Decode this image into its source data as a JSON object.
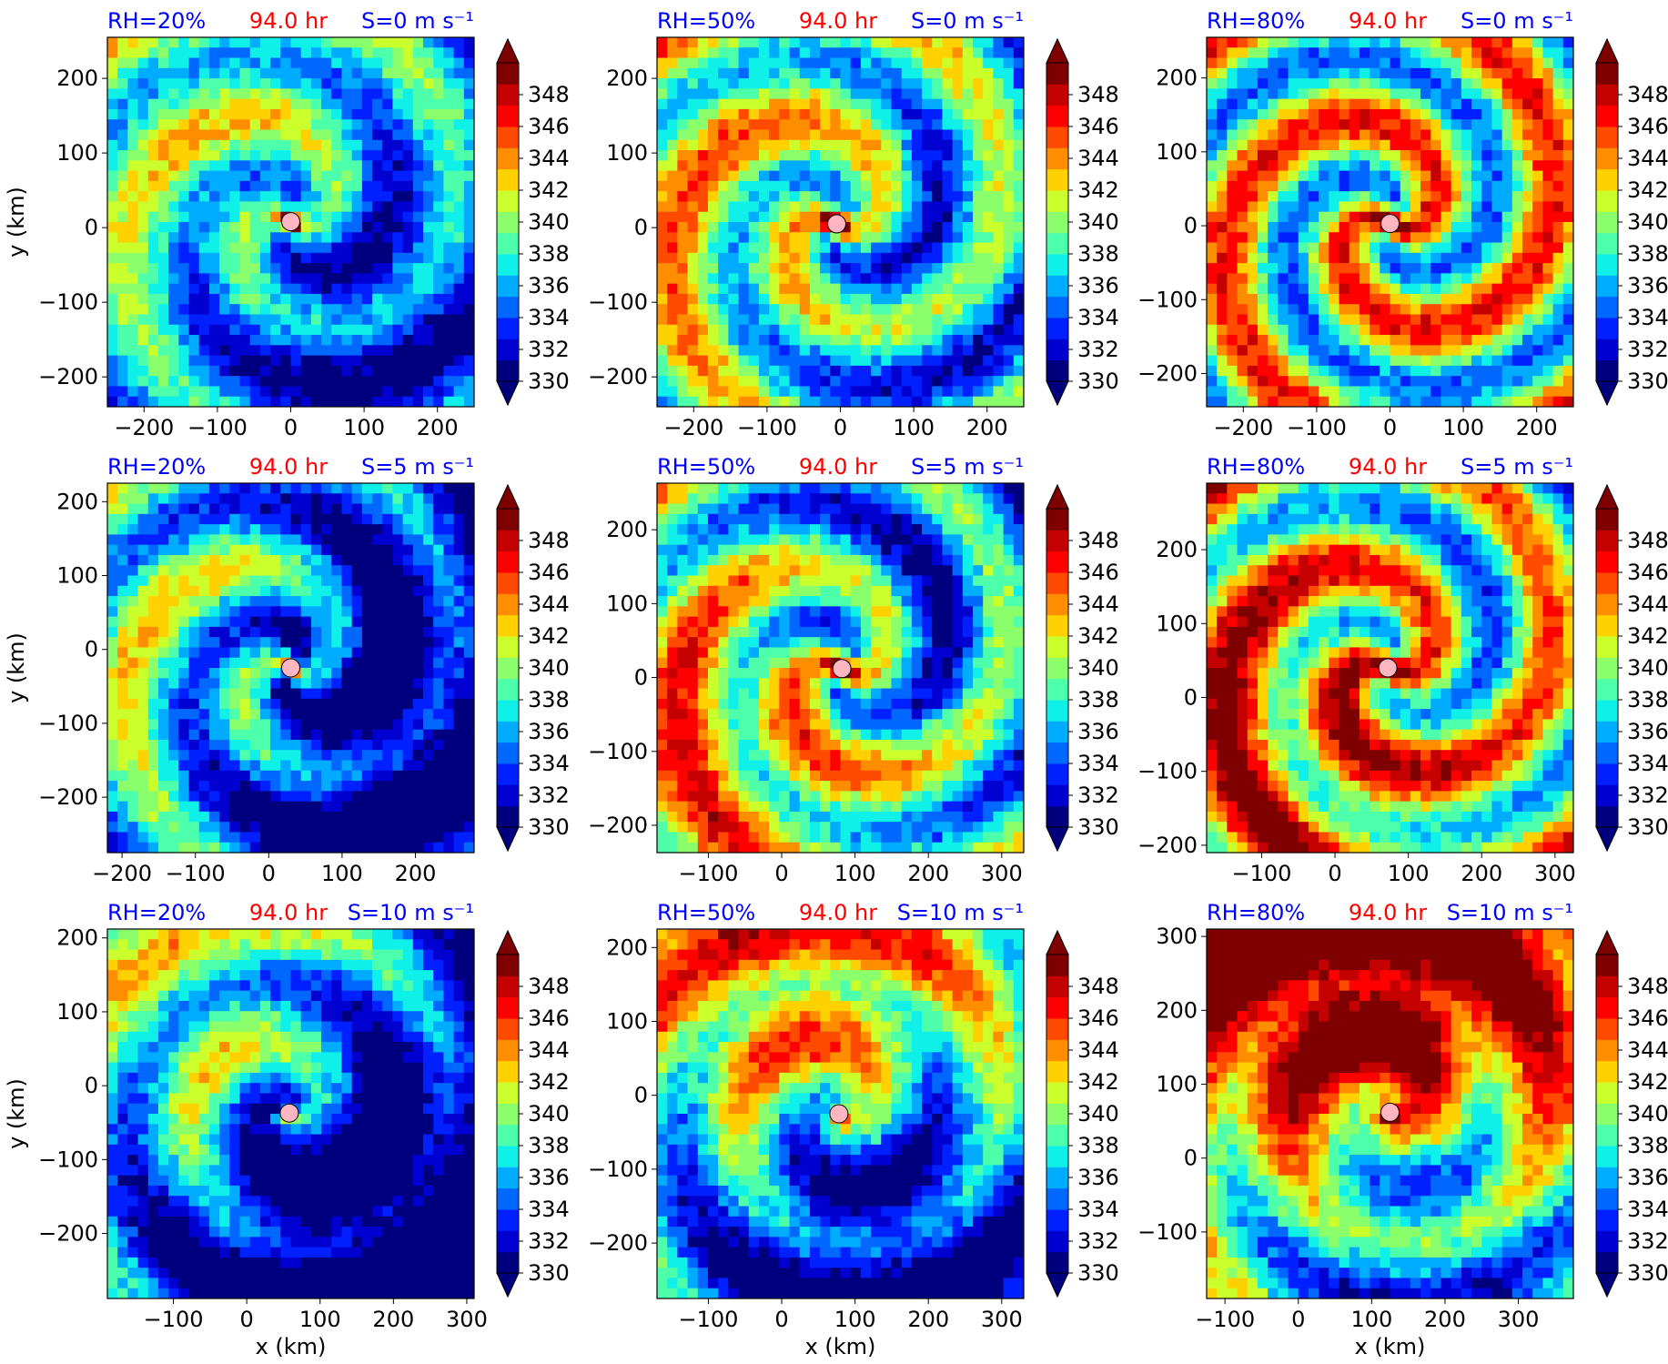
{
  "colors": {
    "label_blue": "#0000ff",
    "label_red": "#ff0000",
    "center_marker": "#ffb6c1",
    "colormap": [
      "#00007f",
      "#0000d0",
      "#0020ff",
      "#0068ff",
      "#00acff",
      "#0ef0e8",
      "#4dffaa",
      "#8bff6b",
      "#caff2c",
      "#ffd100",
      "#ff8d00",
      "#ff4a00",
      "#ff0000",
      "#c40000",
      "#7f0000"
    ]
  },
  "chart_data": [
    {
      "type": "heatmap",
      "title_left": "RH=20%",
      "title_center": "94.0 hr",
      "title_right": "S=0 m s⁻¹",
      "xlabel": "",
      "ylabel": "y (km)",
      "xlim": [
        -250,
        250
      ],
      "ylim": [
        -240,
        255
      ],
      "xticks": [
        -200,
        -100,
        0,
        100,
        200
      ],
      "yticks": [
        -200,
        -100,
        0,
        100,
        200
      ],
      "center": [
        0,
        8
      ],
      "colorbar": {
        "ticks": [
          330,
          332,
          334,
          336,
          338,
          340,
          342,
          344,
          346,
          348
        ],
        "range": [
          330,
          350
        ],
        "extend": "both"
      }
    },
    {
      "type": "heatmap",
      "title_left": "RH=50%",
      "title_center": "94.0 hr",
      "title_right": "S=0 m s⁻¹",
      "xlabel": "",
      "ylabel": "",
      "xlim": [
        -250,
        250
      ],
      "ylim": [
        -240,
        255
      ],
      "xticks": [
        -200,
        -100,
        0,
        100,
        200
      ],
      "yticks": [
        -200,
        -100,
        0,
        100,
        200
      ],
      "center": [
        -5,
        5
      ],
      "colorbar": {
        "ticks": [
          330,
          332,
          334,
          336,
          338,
          340,
          342,
          344,
          346,
          348
        ],
        "range": [
          330,
          350
        ],
        "extend": "both"
      }
    },
    {
      "type": "heatmap",
      "title_left": "RH=80%",
      "title_center": "94.0 hr",
      "title_right": "S=0 m s⁻¹",
      "xlabel": "",
      "ylabel": "",
      "xlim": [
        -250,
        250
      ],
      "ylim": [
        -245,
        255
      ],
      "xticks": [
        -200,
        -100,
        0,
        100,
        200
      ],
      "yticks": [
        -200,
        -100,
        0,
        100,
        200
      ],
      "center": [
        0,
        3
      ],
      "colorbar": {
        "ticks": [
          330,
          332,
          334,
          336,
          338,
          340,
          342,
          344,
          346,
          348
        ],
        "range": [
          330,
          350
        ],
        "extend": "both"
      }
    },
    {
      "type": "heatmap",
      "title_left": "RH=20%",
      "title_center": "94.0 hr",
      "title_right": "S=5 m s⁻¹",
      "xlabel": "",
      "ylabel": "y (km)",
      "xlim": [
        -220,
        280
      ],
      "ylim": [
        -275,
        225
      ],
      "xticks": [
        -200,
        -100,
        0,
        100,
        200
      ],
      "yticks": [
        -200,
        -100,
        0,
        100,
        200
      ],
      "center": [
        30,
        -25
      ],
      "colorbar": {
        "ticks": [
          330,
          332,
          334,
          336,
          338,
          340,
          342,
          344,
          346,
          348
        ],
        "range": [
          330,
          350
        ],
        "extend": "both"
      }
    },
    {
      "type": "heatmap",
      "title_left": "RH=50%",
      "title_center": "94.0 hr",
      "title_right": "S=5 m s⁻¹",
      "xlabel": "",
      "ylabel": "",
      "xlim": [
        -170,
        330
      ],
      "ylim": [
        -237,
        263
      ],
      "xticks": [
        -100,
        0,
        100,
        200,
        300
      ],
      "yticks": [
        -200,
        -100,
        0,
        100,
        200
      ],
      "center": [
        82,
        12
      ],
      "colorbar": {
        "ticks": [
          330,
          332,
          334,
          336,
          338,
          340,
          342,
          344,
          346,
          348
        ],
        "range": [
          330,
          350
        ],
        "extend": "both"
      }
    },
    {
      "type": "heatmap",
      "title_left": "RH=80%",
      "title_center": "94.0 hr",
      "title_right": "S=5 m s⁻¹",
      "xlabel": "",
      "ylabel": "",
      "xlim": [
        -175,
        325
      ],
      "ylim": [
        -210,
        290
      ],
      "xticks": [
        -100,
        0,
        100,
        200,
        300
      ],
      "yticks": [
        -200,
        -100,
        0,
        100,
        200
      ],
      "center": [
        72,
        40
      ],
      "colorbar": {
        "ticks": [
          330,
          332,
          334,
          336,
          338,
          340,
          342,
          344,
          346,
          348
        ],
        "range": [
          330,
          350
        ],
        "extend": "both"
      }
    },
    {
      "type": "heatmap",
      "title_left": "RH=20%",
      "title_center": "94.0 hr",
      "title_right": "S=10 m s⁻¹",
      "xlabel": "x (km)",
      "ylabel": "y (km)",
      "xlim": [
        -190,
        310
      ],
      "ylim": [
        -288,
        212
      ],
      "xticks": [
        -100,
        0,
        100,
        200,
        300
      ],
      "yticks": [
        -200,
        -100,
        0,
        100,
        200
      ],
      "center": [
        58,
        -37
      ],
      "colorbar": {
        "ticks": [
          330,
          332,
          334,
          336,
          338,
          340,
          342,
          344,
          346,
          348
        ],
        "range": [
          330,
          350
        ],
        "extend": "both"
      }
    },
    {
      "type": "heatmap",
      "title_left": "RH=50%",
      "title_center": "94.0 hr",
      "title_right": "S=10 m s⁻¹",
      "xlabel": "x (km)",
      "ylabel": "",
      "xlim": [
        -170,
        330
      ],
      "ylim": [
        -275,
        225
      ],
      "xticks": [
        -100,
        0,
        100,
        200,
        300
      ],
      "yticks": [
        -200,
        -100,
        0,
        100,
        200
      ],
      "center": [
        78,
        -25
      ],
      "colorbar": {
        "ticks": [
          330,
          332,
          334,
          336,
          338,
          340,
          342,
          344,
          346,
          348
        ],
        "range": [
          330,
          350
        ],
        "extend": "both"
      }
    },
    {
      "type": "heatmap",
      "title_left": "RH=80%",
      "title_center": "94.0 hr",
      "title_right": "S=10 m s⁻¹",
      "xlabel": "x (km)",
      "ylabel": "",
      "xlim": [
        -125,
        375
      ],
      "ylim": [
        -190,
        310
      ],
      "xticks": [
        -100,
        0,
        100,
        200,
        300
      ],
      "yticks": [
        -100,
        0,
        100,
        200,
        300
      ],
      "center": [
        125,
        62
      ],
      "colorbar": {
        "ticks": [
          330,
          332,
          334,
          336,
          338,
          340,
          342,
          344,
          346,
          348
        ],
        "range": [
          330,
          350
        ],
        "extend": "both"
      }
    }
  ]
}
